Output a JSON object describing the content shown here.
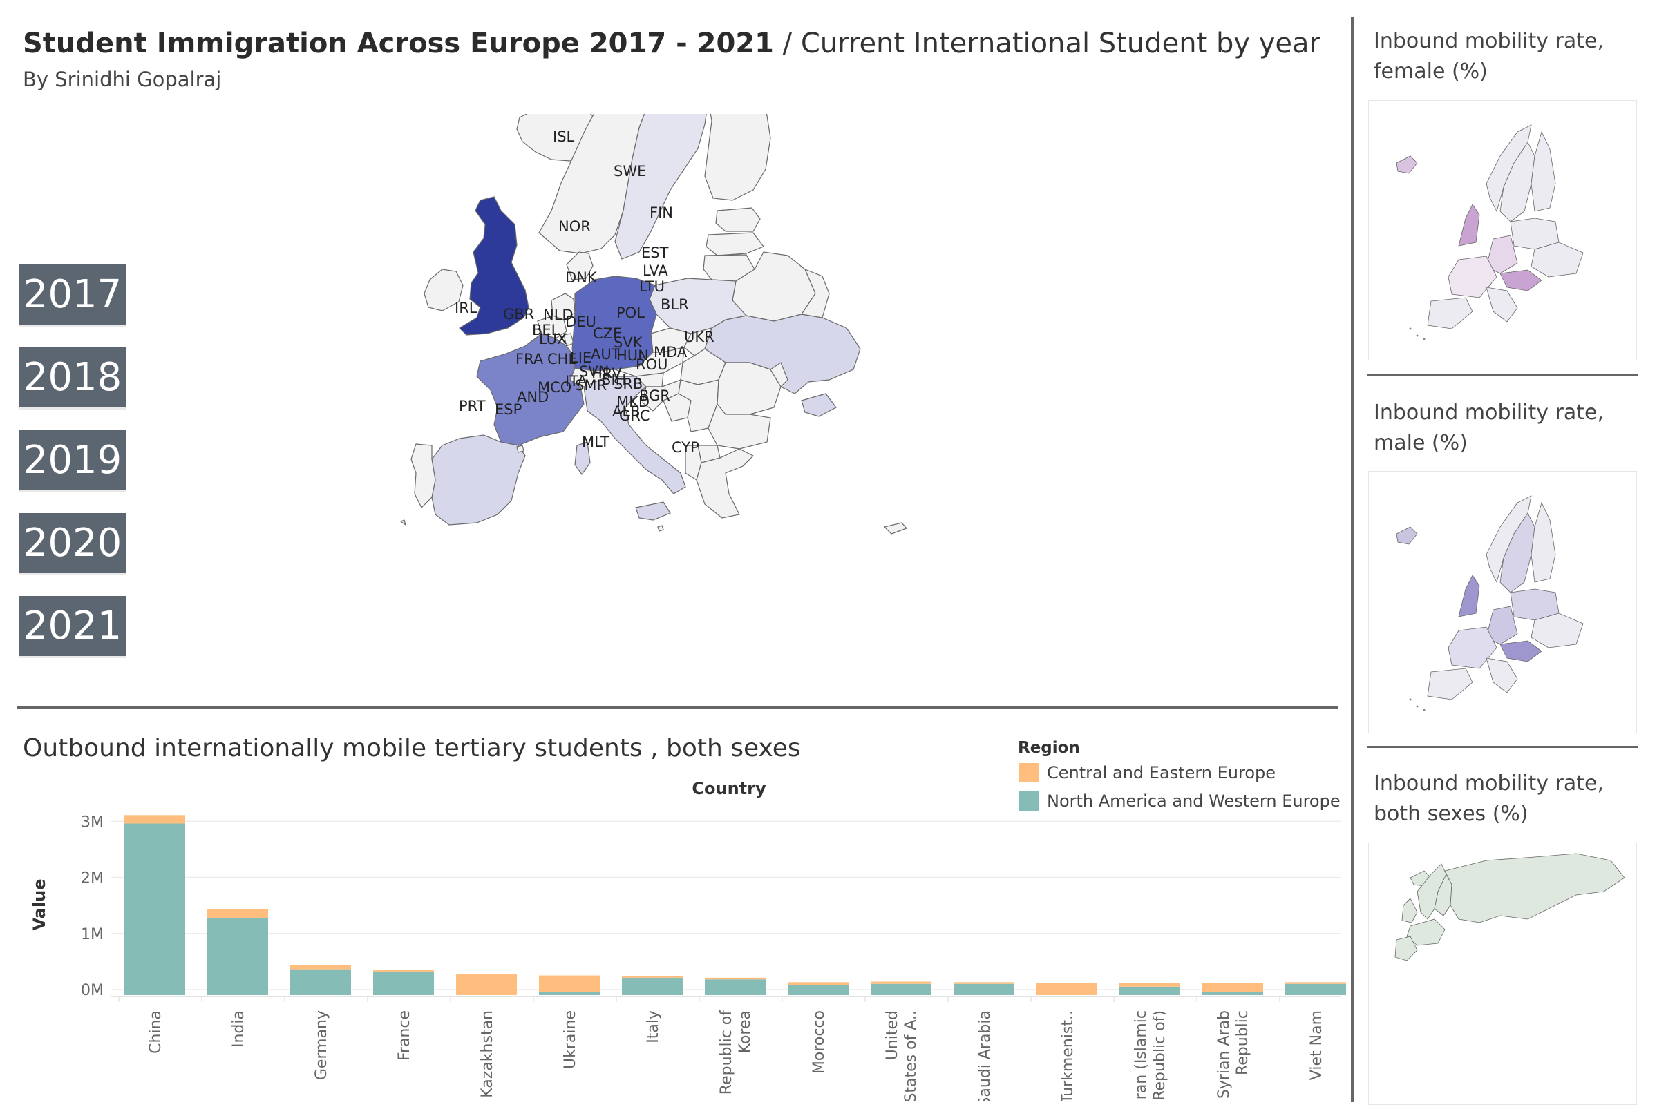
{
  "header": {
    "title_bold": "Student Immigration Across Europe 2017 - 2021",
    "title_rest": "/ Current International Student by year",
    "author": "By Srinidhi Gopalraj"
  },
  "years": [
    "2017",
    "2018",
    "2019",
    "2020",
    "2021"
  ],
  "map": {
    "country_labels": [
      "ISL",
      "SWE",
      "FIN",
      "NOR",
      "EST",
      "LVA",
      "DNK",
      "LTU",
      "BLR",
      "IRL",
      "GBR",
      "NLD",
      "DEU",
      "POL",
      "BEL",
      "LUX",
      "CZE",
      "UKR",
      "SVK",
      "CHE",
      "LIE",
      "AUT",
      "HUN",
      "MDA",
      "FRA",
      "SVN",
      "HRV",
      "ROU",
      "ITA",
      "BIH",
      "SMR",
      "MCO",
      "SRB",
      "AND",
      "BGR",
      "MKD",
      "ALB",
      "PRT",
      "ESP",
      "GRC",
      "MLT",
      "CYP"
    ],
    "colors": {
      "darkest": "#2e3a99",
      "dark": "#5c69be",
      "mid": "#7b83c9",
      "light": "#d6d7ea",
      "lighter": "#e4e4f0",
      "base": "#f2f2f2"
    }
  },
  "side_panels": [
    {
      "title": "Inbound mobility rate, female (%)",
      "accent": "#c9a3d1"
    },
    {
      "title": "Inbound mobility rate, male (%)",
      "accent": "#9d96cf"
    },
    {
      "title": "Inbound mobility rate, both sexes (%)",
      "accent": "#dfe8de"
    }
  ],
  "chart_data": {
    "type": "bar",
    "title": "Outbound internationally mobile tertiary students , both sexes",
    "xlabel": "Country",
    "ylabel": "Value",
    "yticks": [
      "3M",
      "2M",
      "1M",
      "0M"
    ],
    "ylim": [
      0,
      3300000
    ],
    "stacked": true,
    "legend_title": "Region",
    "categories": [
      "China",
      "India",
      "Germany",
      "France",
      "Kazakhstan",
      "Ukraine",
      "Italy",
      "Republic of Korea",
      "Morocco",
      "United States of A..",
      "Saudi Arabia",
      "Turkmenist..",
      "Iran (Islamic Republic of)",
      "Syrian Arab Republic",
      "Viet Nam"
    ],
    "series": [
      {
        "name": "North America and Western Europe",
        "color": "#86bcb6",
        "values": [
          3060000,
          1380000,
          460000,
          420000,
          0,
          60000,
          310000,
          280000,
          180000,
          200000,
          200000,
          0,
          150000,
          50000,
          200000
        ]
      },
      {
        "name": "Central and Eastern Europe",
        "color": "#ffbe7d",
        "values": [
          150000,
          150000,
          70000,
          30000,
          380000,
          290000,
          30000,
          30000,
          50000,
          40000,
          30000,
          220000,
          60000,
          170000,
          30000
        ]
      }
    ]
  }
}
